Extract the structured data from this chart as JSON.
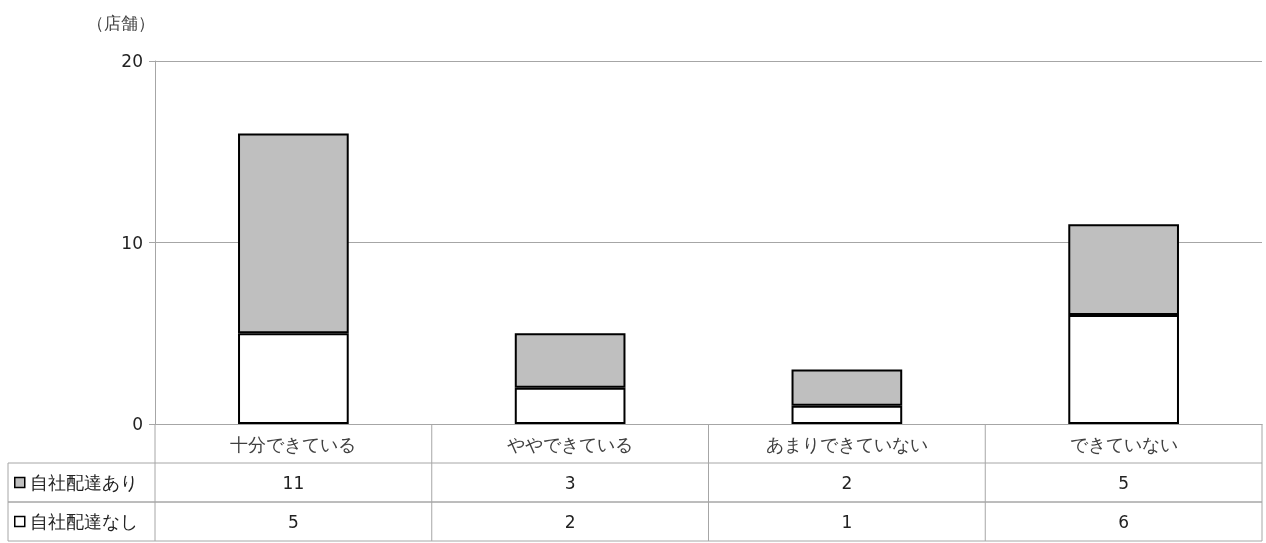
{
  "chart_data": {
    "type": "bar",
    "stacked": true,
    "ylabel": "（店舗）",
    "categories": [
      "十分できている",
      "ややできている",
      "あまりできていない",
      "できていない"
    ],
    "series": [
      {
        "name": "自社配達なし",
        "color": "#ffffff",
        "values": [
          5,
          2,
          1,
          6
        ]
      },
      {
        "name": "自社配達あり",
        "color": "#bfbfbf",
        "values": [
          11,
          3,
          2,
          5
        ]
      }
    ],
    "ylim": [
      0,
      20
    ],
    "yticks": [
      0,
      10,
      20
    ],
    "grid": "y",
    "legend": "bottom",
    "data_labels": true
  }
}
